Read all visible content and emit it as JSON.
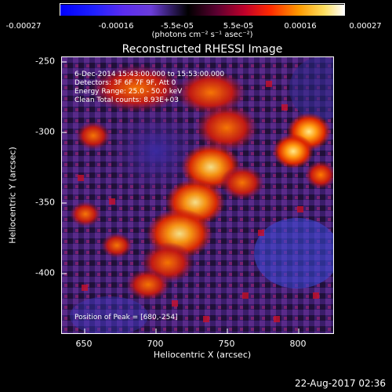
{
  "colorbar": {
    "tick_labels": [
      "-0.00027",
      "-0.00016",
      "-5.5e-05",
      "5.5e-05",
      "0.00016",
      "0.00027"
    ],
    "unit_label": "(photons cm⁻² s⁻¹ asec⁻²)"
  },
  "plot": {
    "title": "Reconstructed RHESSI Image",
    "annotations": {
      "time": "6-Dec-2014 15:43:00.000 to 15:53:00.000",
      "detectors": "Detectors: 3F 6F 7F 9F, Att 0",
      "energy": "Energy Range: 25.0 - 50.0 keV",
      "clean": "Clean    Total counts: 8.93E+03",
      "peak": "Position of Peak = [680,-254]"
    },
    "x_ticks": [
      "650",
      "700",
      "750",
      "800"
    ],
    "y_ticks": [
      "-250",
      "-300",
      "-350",
      "-400"
    ],
    "xlabel": "Heliocentric X (arcsec)",
    "ylabel": "Heliocentric Y (arcsec)"
  },
  "footer": {
    "timestamp": "22-Aug-2017 02:36"
  }
}
